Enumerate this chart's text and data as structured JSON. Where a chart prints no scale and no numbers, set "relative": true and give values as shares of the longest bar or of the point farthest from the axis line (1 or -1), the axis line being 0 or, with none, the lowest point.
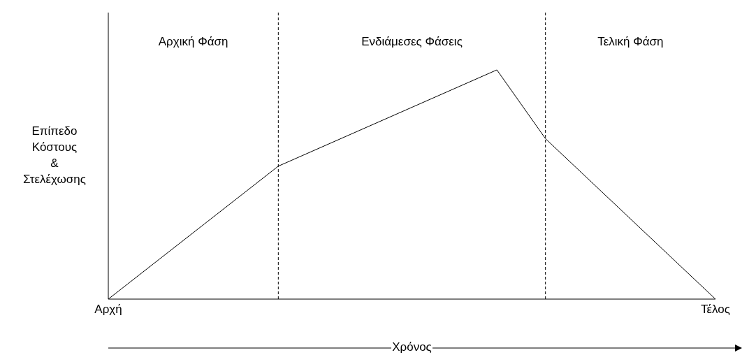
{
  "chart_data": {
    "type": "line",
    "relative": true,
    "categories": [
      "Αρχή",
      null,
      null,
      null,
      null,
      null,
      null,
      null,
      null,
      null,
      null,
      null,
      null,
      null,
      null,
      null,
      null,
      null,
      null,
      null,
      null,
      null,
      null,
      null,
      null,
      "Τέλος"
    ],
    "series": [
      {
        "color": "#000000",
        "values": [
          0,
          null,
          null,
          null,
          null,
          null,
          null,
          0.58,
          null,
          null,
          null,
          null,
          null,
          null,
          null,
          null,
          1,
          null,
          0.7,
          null,
          null,
          null,
          null,
          null,
          null,
          0
        ]
      }
    ],
    "xlabel": "Χρόνος",
    "ylabel": "Επίπεδο\nΚόστους\n&\nΣτελέχωσης",
    "annotations": [
      "Αρχική Φάση",
      "Ενδιάμεσες Φάσεις",
      "Τελική Φάση"
    ],
    "line_style": "solid"
  }
}
